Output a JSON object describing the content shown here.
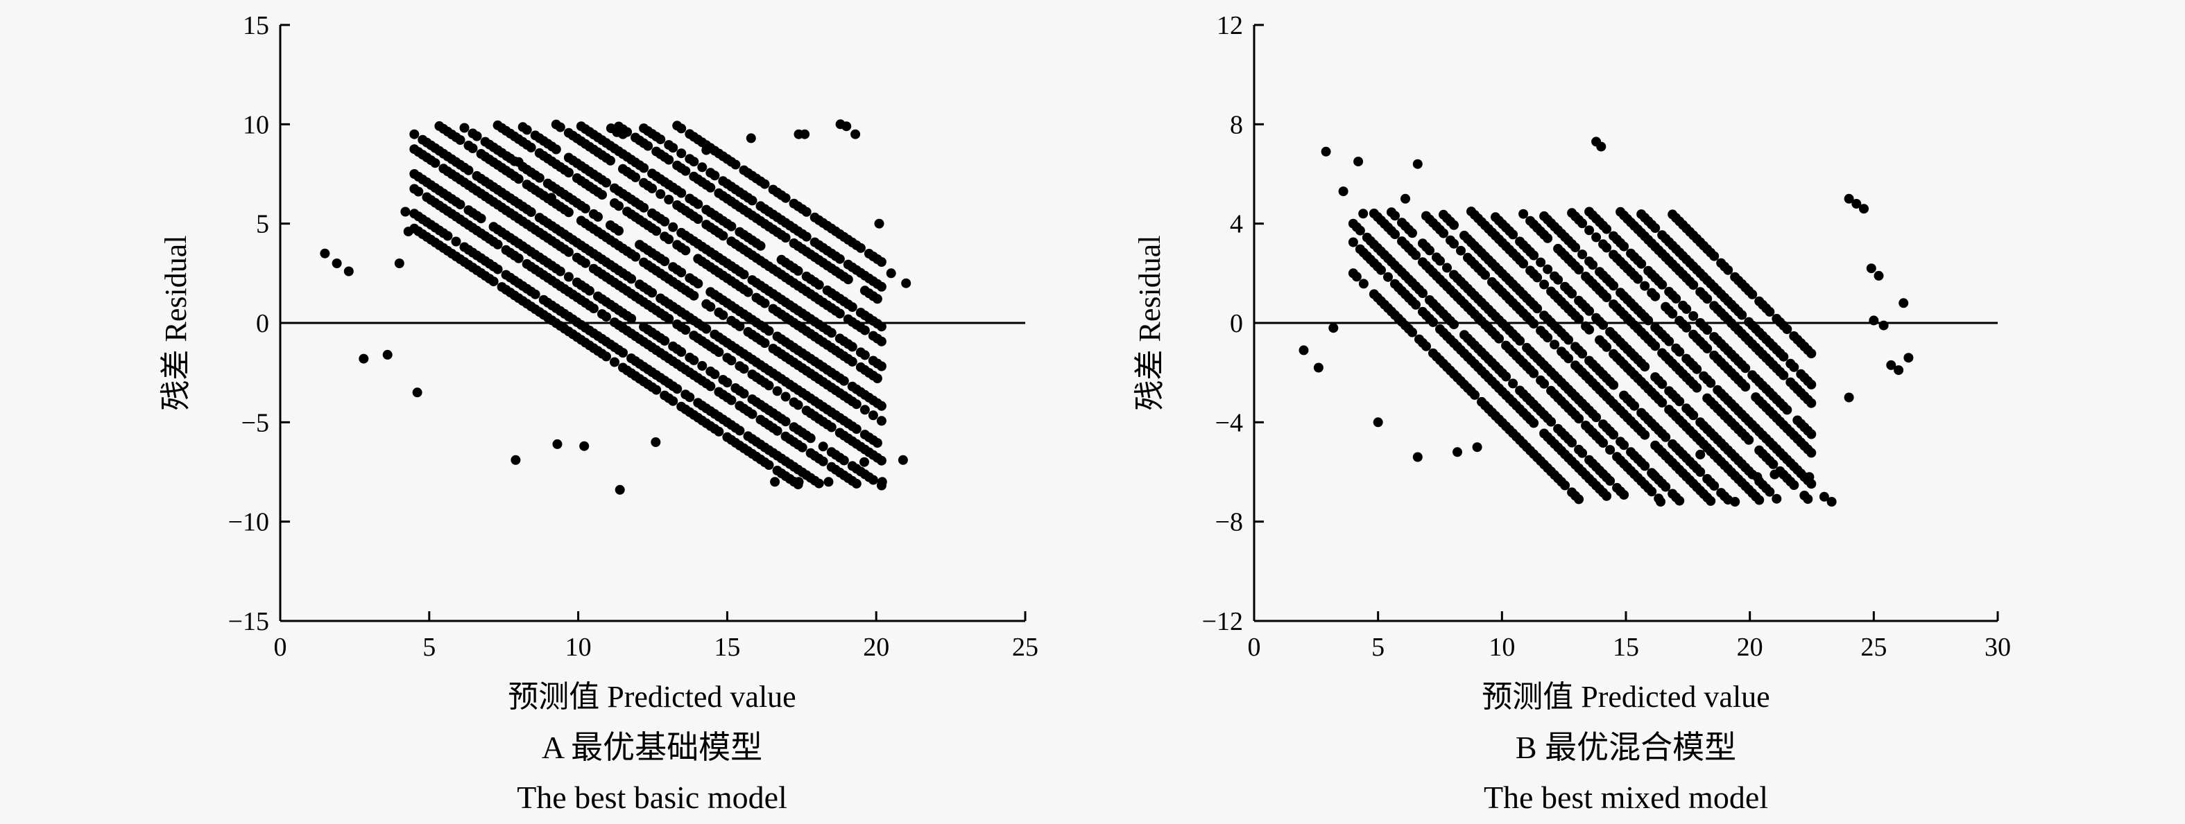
{
  "chart_data": [
    {
      "type": "scatter",
      "panel_label": "A 最优基础模型",
      "panel_label_en": "The best basic model",
      "xlabel": "预测值 Predicted value",
      "ylabel": "残差 Residual",
      "xlim": [
        0,
        25
      ],
      "ylim": [
        -15,
        15
      ],
      "xticks": [
        0,
        5,
        10,
        15,
        20,
        25
      ],
      "yticks": [
        15,
        10,
        5,
        0,
        -5,
        -10,
        -15
      ],
      "x_tick_labels": [
        "0",
        "5",
        "10",
        "15",
        "20",
        "25"
      ],
      "y_tick_labels": [
        "15",
        "10",
        "5",
        "0",
        "−5",
        "−10",
        "−15"
      ],
      "reference_line_y": 0,
      "bands": {
        "slope": -1,
        "offsets": [
          9,
          10,
          11,
          12,
          13,
          14,
          15,
          16,
          17,
          18,
          19,
          20,
          21,
          22,
          23
        ],
        "x_range": [
          4.5,
          20.3
        ],
        "y_range": [
          -8.2,
          10
        ]
      },
      "points": [
        [
          1.5,
          3.5
        ],
        [
          1.9,
          3.0
        ],
        [
          2.3,
          2.6
        ],
        [
          2.8,
          -1.8
        ],
        [
          3.6,
          -1.6
        ],
        [
          4.0,
          3.0
        ],
        [
          4.2,
          5.6
        ],
        [
          4.3,
          4.6
        ],
        [
          4.6,
          -3.5
        ],
        [
          6.6,
          9.4
        ],
        [
          7.6,
          8.4
        ],
        [
          8.0,
          8.1
        ],
        [
          9.1,
          6.3
        ],
        [
          9.4,
          6.6
        ],
        [
          11.1,
          9.8
        ],
        [
          11.3,
          9.6
        ],
        [
          11.5,
          9.5
        ],
        [
          11.4,
          -8.4
        ],
        [
          14.3,
          8.7
        ],
        [
          15.8,
          9.3
        ],
        [
          17.4,
          9.5
        ],
        [
          17.6,
          9.5
        ],
        [
          18.8,
          10.0
        ],
        [
          19.0,
          9.9
        ],
        [
          19.3,
          9.5
        ],
        [
          20.1,
          5.0
        ],
        [
          20.5,
          2.5
        ],
        [
          21.0,
          2.0
        ],
        [
          20.9,
          -6.9
        ],
        [
          20.2,
          -8.0
        ],
        [
          16.6,
          -8.0
        ],
        [
          17.4,
          -8.0
        ],
        [
          18.4,
          -8.0
        ],
        [
          7.9,
          -6.9
        ],
        [
          10.2,
          -6.2
        ],
        [
          12.6,
          -6.0
        ],
        [
          9.3,
          -6.1
        ],
        [
          19.6,
          -7.0
        ]
      ],
      "marker_color": "#000000"
    },
    {
      "type": "scatter",
      "panel_label": "B 最优混合模型",
      "panel_label_en": "The best mixed model",
      "xlabel": "预测值 Predicted value",
      "ylabel": "残差 Residual",
      "xlim": [
        0,
        30
      ],
      "ylim": [
        -12,
        12
      ],
      "xticks": [
        0,
        5,
        10,
        15,
        20,
        25,
        30
      ],
      "yticks": [
        12,
        8,
        4,
        0,
        -4,
        -8,
        -12
      ],
      "x_tick_labels": [
        "0",
        "5",
        "10",
        "15",
        "20",
        "25",
        "30"
      ],
      "y_tick_labels": [
        "12",
        "8",
        "4",
        "0",
        "−4",
        "−8",
        "−12"
      ],
      "reference_line_y": 0,
      "bands": {
        "slope": -1,
        "offsets": [
          6,
          7,
          8,
          9,
          10,
          11,
          12,
          13,
          14,
          15,
          16,
          17,
          18,
          19,
          20,
          21
        ],
        "x_range": [
          4.0,
          22.5
        ],
        "y_range": [
          -7.2,
          4.5
        ]
      },
      "points": [
        [
          2.0,
          -1.1
        ],
        [
          2.6,
          -1.8
        ],
        [
          2.9,
          6.9
        ],
        [
          3.2,
          -0.2
        ],
        [
          3.6,
          5.3
        ],
        [
          4.2,
          6.5
        ],
        [
          4.4,
          4.4
        ],
        [
          6.1,
          5.0
        ],
        [
          6.6,
          6.4
        ],
        [
          13.8,
          7.3
        ],
        [
          14.0,
          7.1
        ],
        [
          24.0,
          5.0
        ],
        [
          24.3,
          4.8
        ],
        [
          24.6,
          4.6
        ],
        [
          24.9,
          2.2
        ],
        [
          25.2,
          1.9
        ],
        [
          25.0,
          0.1
        ],
        [
          25.4,
          -0.1
        ],
        [
          24.0,
          -3.0
        ],
        [
          25.7,
          -1.7
        ],
        [
          26.0,
          -1.9
        ],
        [
          26.4,
          -1.4
        ],
        [
          26.2,
          0.8
        ],
        [
          23.0,
          -7.0
        ],
        [
          23.3,
          -7.2
        ],
        [
          19.4,
          -7.2
        ],
        [
          16.4,
          -7.2
        ],
        [
          8.2,
          -5.2
        ],
        [
          9.0,
          -5.0
        ],
        [
          6.6,
          -5.4
        ],
        [
          20.3,
          -6.2
        ],
        [
          21.0,
          -6.1
        ],
        [
          22.4,
          -6.2
        ],
        [
          18.0,
          -5.3
        ],
        [
          16.1,
          -6.1
        ],
        [
          5.0,
          -4.0
        ]
      ],
      "marker_color": "#000000"
    }
  ]
}
